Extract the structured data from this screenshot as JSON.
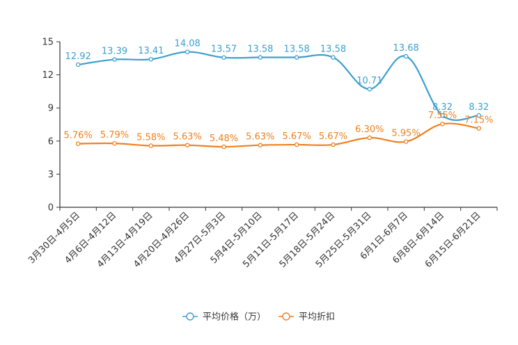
{
  "colors": {
    "price": "#3a9fce",
    "discount": "#f07f1e",
    "axis": "#333333",
    "tick_text": "#333333"
  },
  "chart_data": {
    "type": "line",
    "categories": [
      "3月30日-4月5日",
      "4月6日-4月12日",
      "4月13日-4月19日",
      "4月20日-4月26日",
      "4月27日-5月3日",
      "5月4日-5月10日",
      "5月11日-5月17日",
      "5月18日-5月24日",
      "5月25日-5月31日",
      "6月1日-6月7日",
      "6月8日-6月14日",
      "6月15日-6月21日"
    ],
    "y_ticks": [
      0,
      3,
      6,
      9,
      12,
      15
    ],
    "y_tick_labels": [
      "0",
      "3",
      "6",
      "9",
      "12",
      "15"
    ],
    "ylim": [
      0,
      15
    ],
    "series": [
      {
        "name": "平均价格（万）",
        "values": [
          12.92,
          13.39,
          13.41,
          14.08,
          13.57,
          13.58,
          13.58,
          13.58,
          10.71,
          13.68,
          8.32,
          8.32
        ],
        "labels": [
          "12.92",
          "13.39",
          "13.41",
          "14.08",
          "13.57",
          "13.58",
          "13.58",
          "13.58",
          "10.71",
          "13.68",
          "8.32",
          "8.32"
        ]
      },
      {
        "name": "平均折扣",
        "values": [
          5.76,
          5.79,
          5.58,
          5.63,
          5.48,
          5.63,
          5.67,
          5.67,
          6.3,
          5.95,
          7.55,
          7.15
        ],
        "labels": [
          "5.76%",
          "5.79%",
          "5.58%",
          "5.63%",
          "5.48%",
          "5.63%",
          "5.67%",
          "5.67%",
          "6.30%",
          "5.95%",
          "7.55%",
          "7.15%"
        ]
      }
    ],
    "legend_position": "bottom-center"
  }
}
